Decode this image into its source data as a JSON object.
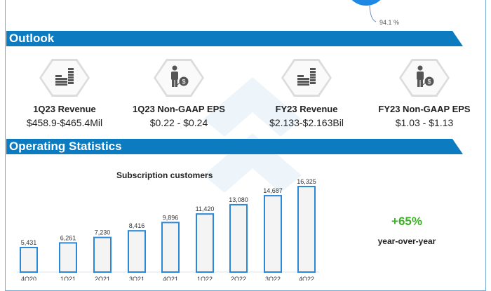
{
  "top_chart": {
    "slice_label": "94.1 %",
    "color": "#1e88e5"
  },
  "outlook": {
    "title": "Outlook",
    "items": [
      {
        "icon": "coin-stacks-icon",
        "label": "1Q23 Revenue",
        "value": "$458.9-$465.4Mil"
      },
      {
        "icon": "person-dollar-icon",
        "label": "1Q23 Non-GAAP EPS",
        "value": "$0.22 - $0.24"
      },
      {
        "icon": "coin-stacks-icon",
        "label": "FY23 Revenue",
        "value": "$2.133-$2.163Bil"
      },
      {
        "icon": "person-dollar-icon",
        "label": "FY23 Non-GAAP EPS",
        "value": "$1.03 - $1.13"
      }
    ]
  },
  "operating": {
    "title": "Operating Statistics",
    "growth": "+65%",
    "growth_label": "year-over-year"
  },
  "chart_data": {
    "type": "bar",
    "title": "Subscription customers",
    "categories": [
      "4Q20",
      "1Q21",
      "2Q21",
      "3Q21",
      "4Q21",
      "1Q22",
      "2Q22",
      "3Q22",
      "4Q22"
    ],
    "values": [
      5431,
      6261,
      7230,
      8416,
      9896,
      11420,
      13080,
      14687,
      16325
    ],
    "labels": [
      "5,431",
      "6,261",
      "7,230",
      "8,416",
      "9,896",
      "11,420",
      "13,080",
      "14,687",
      "16,325"
    ],
    "bar_fill": "#f4f4f4",
    "bar_stroke": "#2b87d8",
    "grid": false
  }
}
